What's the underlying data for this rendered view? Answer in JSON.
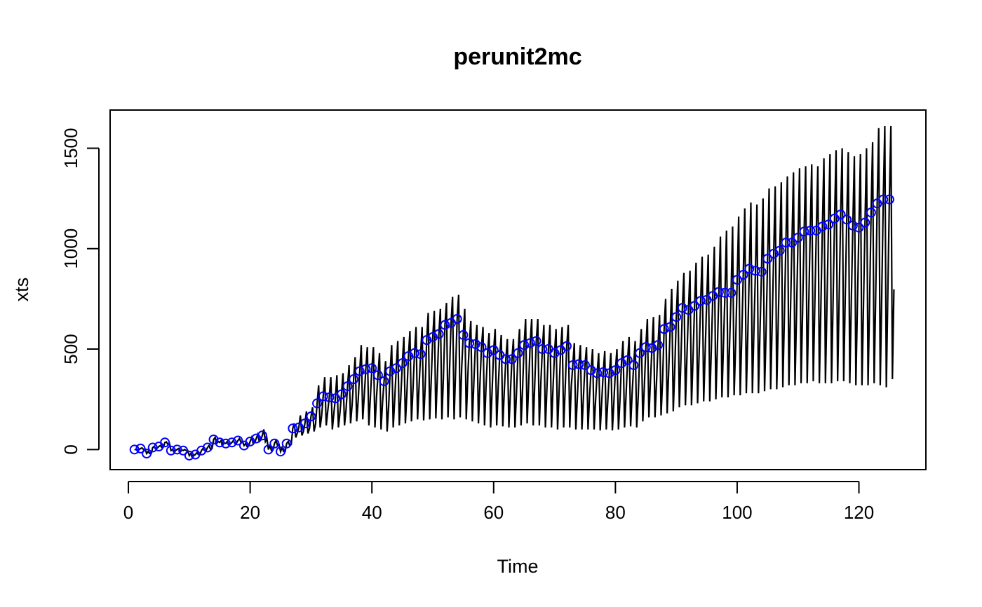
{
  "chart_data": {
    "type": "line",
    "title": "perunit2mc",
    "xlabel": "Time",
    "ylabel": "xts",
    "xlim": [
      -3,
      131
    ],
    "ylim": [
      -100,
      1690
    ],
    "x_ticks": [
      0,
      20,
      40,
      60,
      80,
      100,
      120
    ],
    "y_ticks": [
      0,
      500,
      1000,
      1500
    ],
    "grid": false,
    "legend": "none",
    "colors": {
      "line": "#000000",
      "points": "#0000ff",
      "frame": "#000000"
    },
    "point_series": {
      "marker": "open-circle",
      "x": [
        1,
        2,
        3,
        4,
        5,
        6,
        7,
        8,
        9,
        10,
        11,
        12,
        13,
        14,
        15,
        16,
        17,
        18,
        19,
        20,
        21,
        22,
        23,
        24,
        25,
        26,
        27,
        28,
        29,
        30,
        31,
        32,
        33,
        34,
        35,
        36,
        37,
        38,
        39,
        40,
        41,
        42,
        43,
        44,
        45,
        46,
        47,
        48,
        49,
        50,
        51,
        52,
        53,
        54,
        55,
        56,
        57,
        58,
        59,
        60,
        61,
        62,
        63,
        64,
        65,
        66,
        67,
        68,
        69,
        70,
        71,
        72,
        73,
        74,
        75,
        76,
        77,
        78,
        79,
        80,
        81,
        82,
        83,
        84,
        85,
        86,
        87,
        88,
        89,
        90,
        91,
        92,
        93,
        94,
        95,
        96,
        97,
        98,
        99,
        100,
        101,
        102,
        103,
        104,
        105,
        106,
        107,
        108,
        109,
        110,
        111,
        112,
        113,
        114,
        115,
        116,
        117,
        118,
        119,
        120,
        121,
        122,
        123,
        124,
        125
      ],
      "y": [
        0,
        5,
        -20,
        10,
        15,
        35,
        -5,
        0,
        -5,
        -30,
        -25,
        -5,
        10,
        50,
        35,
        30,
        35,
        45,
        20,
        40,
        55,
        70,
        0,
        30,
        -10,
        30,
        105,
        110,
        130,
        165,
        230,
        265,
        260,
        255,
        275,
        315,
        350,
        390,
        400,
        405,
        370,
        340,
        390,
        405,
        430,
        465,
        480,
        475,
        545,
        560,
        575,
        620,
        630,
        650,
        570,
        530,
        525,
        510,
        480,
        495,
        470,
        450,
        450,
        480,
        520,
        530,
        540,
        500,
        500,
        480,
        495,
        515,
        420,
        425,
        420,
        395,
        380,
        385,
        380,
        395,
        430,
        445,
        420,
        480,
        510,
        505,
        520,
        600,
        610,
        660,
        705,
        695,
        715,
        740,
        745,
        765,
        785,
        780,
        780,
        845,
        870,
        900,
        890,
        885,
        950,
        975,
        990,
        1030,
        1030,
        1055,
        1085,
        1090,
        1090,
        1110,
        1120,
        1150,
        1170,
        1145,
        1115,
        1105,
        1130,
        1180,
        1225,
        1245,
        1245
      ]
    },
    "line_series": {
      "segments_per_unit": 4,
      "x_start": 1,
      "cycle_profile_note": "each unit: point value, seasonal high, seasonal low, mid",
      "high": [
        0,
        8,
        -10,
        15,
        20,
        38,
        0,
        5,
        0,
        -20,
        -15,
        5,
        20,
        60,
        45,
        40,
        45,
        55,
        30,
        60,
        75,
        100,
        20,
        45,
        10,
        40,
        130,
        170,
        190,
        210,
        320,
        360,
        360,
        370,
        380,
        420,
        460,
        520,
        510,
        510,
        480,
        440,
        520,
        540,
        560,
        590,
        610,
        610,
        680,
        690,
        700,
        730,
        760,
        770,
        700,
        640,
        620,
        610,
        580,
        600,
        570,
        550,
        550,
        600,
        650,
        650,
        650,
        620,
        620,
        600,
        610,
        620,
        530,
        520,
        510,
        500,
        480,
        490,
        480,
        500,
        540,
        560,
        540,
        600,
        650,
        660,
        670,
        750,
        800,
        840,
        880,
        890,
        930,
        960,
        970,
        1010,
        1060,
        1090,
        1110,
        1160,
        1200,
        1230,
        1220,
        1250,
        1300,
        1310,
        1330,
        1360,
        1380,
        1400,
        1410,
        1420,
        1410,
        1450,
        1470,
        1490,
        1500,
        1480,
        1460,
        1470,
        1500,
        1530,
        1600,
        1610,
        1610
      ],
      "low": [
        0,
        0,
        -20,
        5,
        10,
        25,
        -5,
        -5,
        -5,
        -30,
        -25,
        -5,
        0,
        30,
        30,
        25,
        30,
        35,
        15,
        30,
        40,
        40,
        -5,
        20,
        -10,
        20,
        60,
        70,
        80,
        90,
        110,
        120,
        100,
        110,
        120,
        130,
        140,
        150,
        120,
        110,
        100,
        90,
        110,
        120,
        130,
        140,
        150,
        145,
        150,
        155,
        150,
        160,
        150,
        160,
        150,
        140,
        130,
        120,
        110,
        120,
        115,
        110,
        110,
        120,
        130,
        120,
        120,
        110,
        110,
        100,
        110,
        110,
        100,
        100,
        100,
        100,
        95,
        100,
        95,
        100,
        110,
        115,
        110,
        140,
        160,
        160,
        170,
        180,
        190,
        210,
        220,
        220,
        230,
        240,
        240,
        250,
        260,
        260,
        270,
        270,
        280,
        280,
        280,
        290,
        300,
        300,
        310,
        320,
        320,
        330,
        330,
        340,
        330,
        330,
        330,
        340,
        340,
        330,
        320,
        320,
        320,
        330,
        320,
        310,
        350
      ]
    }
  }
}
